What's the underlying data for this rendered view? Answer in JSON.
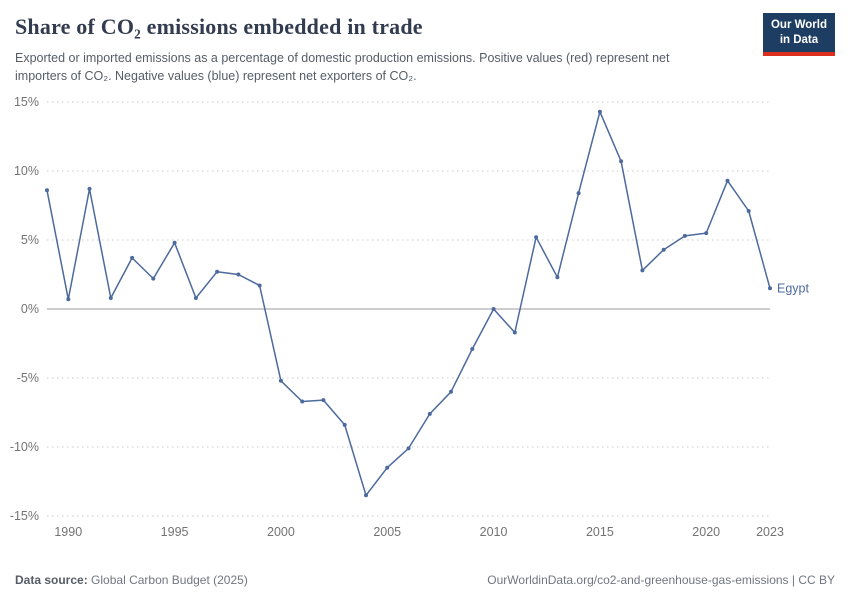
{
  "header": {
    "title": "Share of CO₂ emissions embedded in trade",
    "subtitle": "Exported or imported emissions as a percentage of domestic production emissions. Positive values (red) represent net importers of CO₂. Negative values (blue) represent net exporters of CO₂.",
    "logo": {
      "line1": "Our World",
      "line2": "in Data",
      "bg_color": "#1d3d63",
      "accent_color": "#dc2f1e"
    }
  },
  "chart_data": {
    "type": "line",
    "title": "Share of CO₂ emissions embedded in trade",
    "xlabel": "",
    "ylabel": "",
    "x": [
      1989,
      1990,
      1991,
      1992,
      1993,
      1994,
      1995,
      1996,
      1997,
      1998,
      1999,
      2000,
      2001,
      2002,
      2003,
      2004,
      2005,
      2006,
      2007,
      2008,
      2009,
      2010,
      2011,
      2012,
      2013,
      2014,
      2015,
      2016,
      2017,
      2018,
      2019,
      2020,
      2021,
      2022,
      2023
    ],
    "series": [
      {
        "name": "Egypt",
        "color": "#4c6a9c",
        "values": [
          8.6,
          0.7,
          8.7,
          0.8,
          3.7,
          2.2,
          4.8,
          0.8,
          2.7,
          2.5,
          1.7,
          -5.2,
          -6.7,
          -6.6,
          -8.4,
          -13.5,
          -11.5,
          -10.1,
          -7.6,
          -6.0,
          -2.9,
          0.0,
          -1.7,
          5.2,
          2.3,
          8.4,
          14.3,
          10.7,
          2.8,
          4.3,
          5.3,
          5.5,
          9.3,
          7.1,
          1.5
        ]
      }
    ],
    "end_label": "Egypt",
    "xticks": [
      1990,
      1995,
      2000,
      2005,
      2010,
      2015,
      2020,
      2023
    ],
    "yticks": [
      -15,
      -10,
      -5,
      0,
      5,
      10,
      15
    ],
    "ylim": [
      -15,
      15
    ],
    "ytick_suffix": "%",
    "grid": "horizontal-dotted",
    "zero_line": true,
    "legend_position": "end-of-line"
  },
  "footer": {
    "source_label": "Data source:",
    "source_value": "Global Carbon Budget (2025)",
    "attribution": "OurWorldinData.org/co2-and-greenhouse-gas-emissions | CC BY"
  }
}
